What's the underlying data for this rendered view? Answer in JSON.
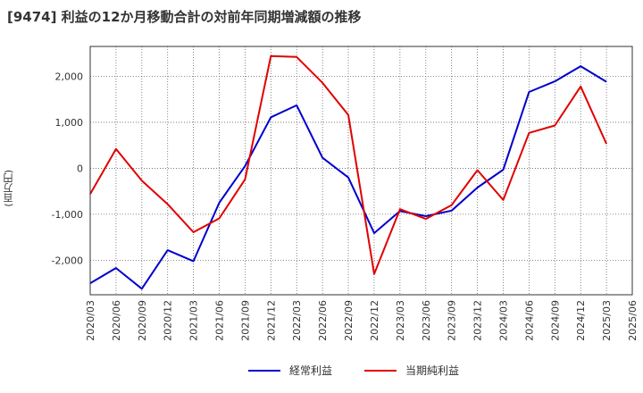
{
  "chart_data": {
    "type": "line",
    "title": "[9474]  利益の12か月移動合計の対前年同期増減額の推移",
    "ylabel": "(百万円)",
    "xlabel": "",
    "ylim": [
      -2750,
      2650
    ],
    "yticks": [
      2000,
      1000,
      0,
      -1000,
      -2000
    ],
    "ytick_labels": [
      "2,000",
      "1,000",
      "0",
      "-1,000",
      "-2,000"
    ],
    "categories": [
      "2020/03",
      "2020/06",
      "2020/09",
      "2020/12",
      "2021/03",
      "2021/06",
      "2021/09",
      "2021/12",
      "2022/03",
      "2022/06",
      "2022/09",
      "2022/12",
      "2023/03",
      "2023/06",
      "2023/09",
      "2023/12",
      "2024/03",
      "2024/06",
      "2024/09",
      "2024/12",
      "2025/03",
      "2025/06"
    ],
    "series": [
      {
        "name": "経常利益",
        "color": "#0000cc",
        "values": [
          -2500,
          -2170,
          -2620,
          -1780,
          -2020,
          -750,
          50,
          1110,
          1370,
          230,
          -200,
          -1410,
          -930,
          -1040,
          -920,
          -420,
          -30,
          1660,
          1890,
          2220,
          1880,
          null
        ]
      },
      {
        "name": "当期純利益",
        "color": "#e00000",
        "values": [
          -560,
          420,
          -270,
          -780,
          -1390,
          -1090,
          -240,
          2440,
          2420,
          1860,
          1160,
          -2300,
          -890,
          -1100,
          -800,
          -40,
          -690,
          770,
          930,
          1780,
          530,
          null
        ]
      }
    ],
    "grid": true,
    "legend": "bottom-center"
  }
}
